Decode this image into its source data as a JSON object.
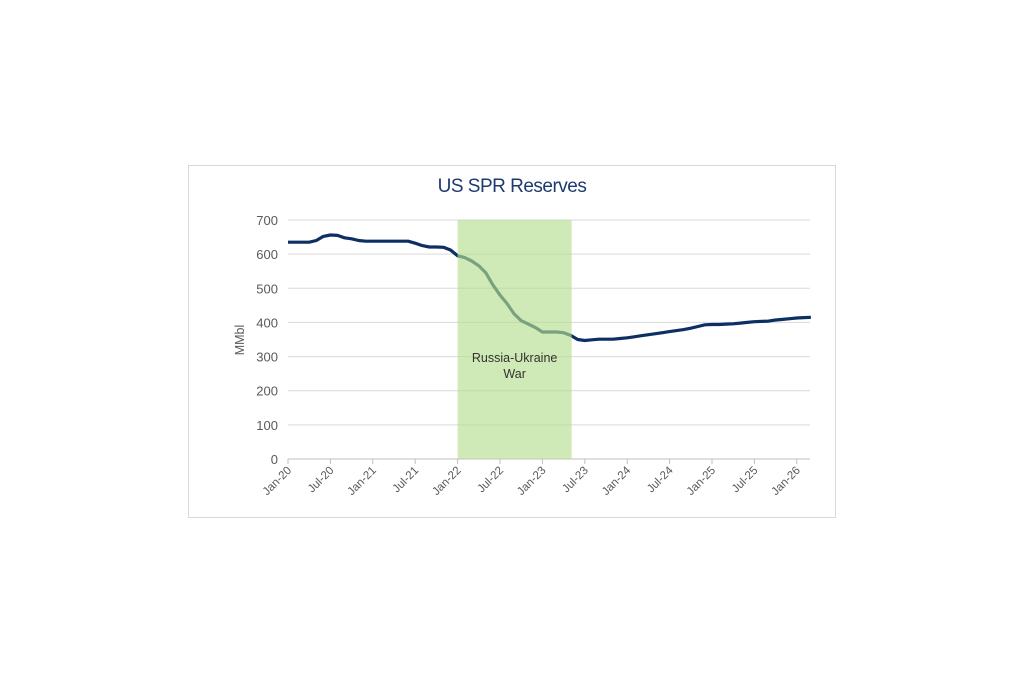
{
  "chart_data": {
    "type": "line",
    "title": "US SPR Reserves",
    "xlabel": "",
    "ylabel": "MMbl",
    "ylim": [
      0,
      700
    ],
    "yticks": [
      0,
      100,
      200,
      300,
      400,
      500,
      600,
      700
    ],
    "xticks": [
      "Jan-20",
      "Jul-20",
      "Jan-21",
      "Jul-21",
      "Jan-22",
      "Jul-22",
      "Jan-23",
      "Jul-23",
      "Jan-24",
      "Jul-24",
      "Jan-25",
      "Jul-25",
      "Jan-26"
    ],
    "xlim": [
      "2020-01",
      "2026-03"
    ],
    "grid": true,
    "legend": "none",
    "line_color": "#0d2f64",
    "annotation": {
      "text_line1": "Russia-Ukraine",
      "text_line2": "War",
      "start": "2022-01",
      "end": "2023-05",
      "color": "#b5de8f"
    },
    "x": [
      "2020-01",
      "2020-02",
      "2020-03",
      "2020-04",
      "2020-05",
      "2020-06",
      "2020-07",
      "2020-08",
      "2020-09",
      "2020-10",
      "2020-11",
      "2020-12",
      "2021-01",
      "2021-02",
      "2021-03",
      "2021-04",
      "2021-05",
      "2021-06",
      "2021-07",
      "2021-08",
      "2021-09",
      "2021-10",
      "2021-11",
      "2021-12",
      "2022-01",
      "2022-02",
      "2022-03",
      "2022-04",
      "2022-05",
      "2022-06",
      "2022-07",
      "2022-08",
      "2022-09",
      "2022-10",
      "2022-11",
      "2022-12",
      "2023-01",
      "2023-02",
      "2023-03",
      "2023-04",
      "2023-05",
      "2023-06",
      "2023-07",
      "2023-08",
      "2023-09",
      "2023-10",
      "2023-11",
      "2023-12",
      "2024-01",
      "2024-02",
      "2024-03",
      "2024-04",
      "2024-05",
      "2024-06",
      "2024-07",
      "2024-08",
      "2024-09",
      "2024-10",
      "2024-11",
      "2024-12",
      "2025-01",
      "2025-02",
      "2025-03",
      "2025-04",
      "2025-05",
      "2025-06",
      "2025-07",
      "2025-08",
      "2025-09",
      "2025-10",
      "2025-11",
      "2025-12",
      "2026-01",
      "2026-02",
      "2026-03"
    ],
    "values": [
      635,
      635,
      635,
      635,
      640,
      652,
      656,
      655,
      648,
      645,
      640,
      638,
      638,
      638,
      638,
      638,
      638,
      638,
      632,
      625,
      621,
      621,
      620,
      612,
      595,
      590,
      580,
      566,
      545,
      510,
      480,
      455,
      425,
      405,
      395,
      385,
      372,
      372,
      372,
      370,
      362,
      350,
      347,
      349,
      351,
      351,
      351,
      353,
      355,
      358,
      361,
      364,
      367,
      370,
      373,
      376,
      379,
      383,
      388,
      393,
      394,
      394,
      395,
      396,
      398,
      400,
      402,
      403,
      404,
      407,
      409,
      411,
      413,
      414,
      415
    ]
  }
}
